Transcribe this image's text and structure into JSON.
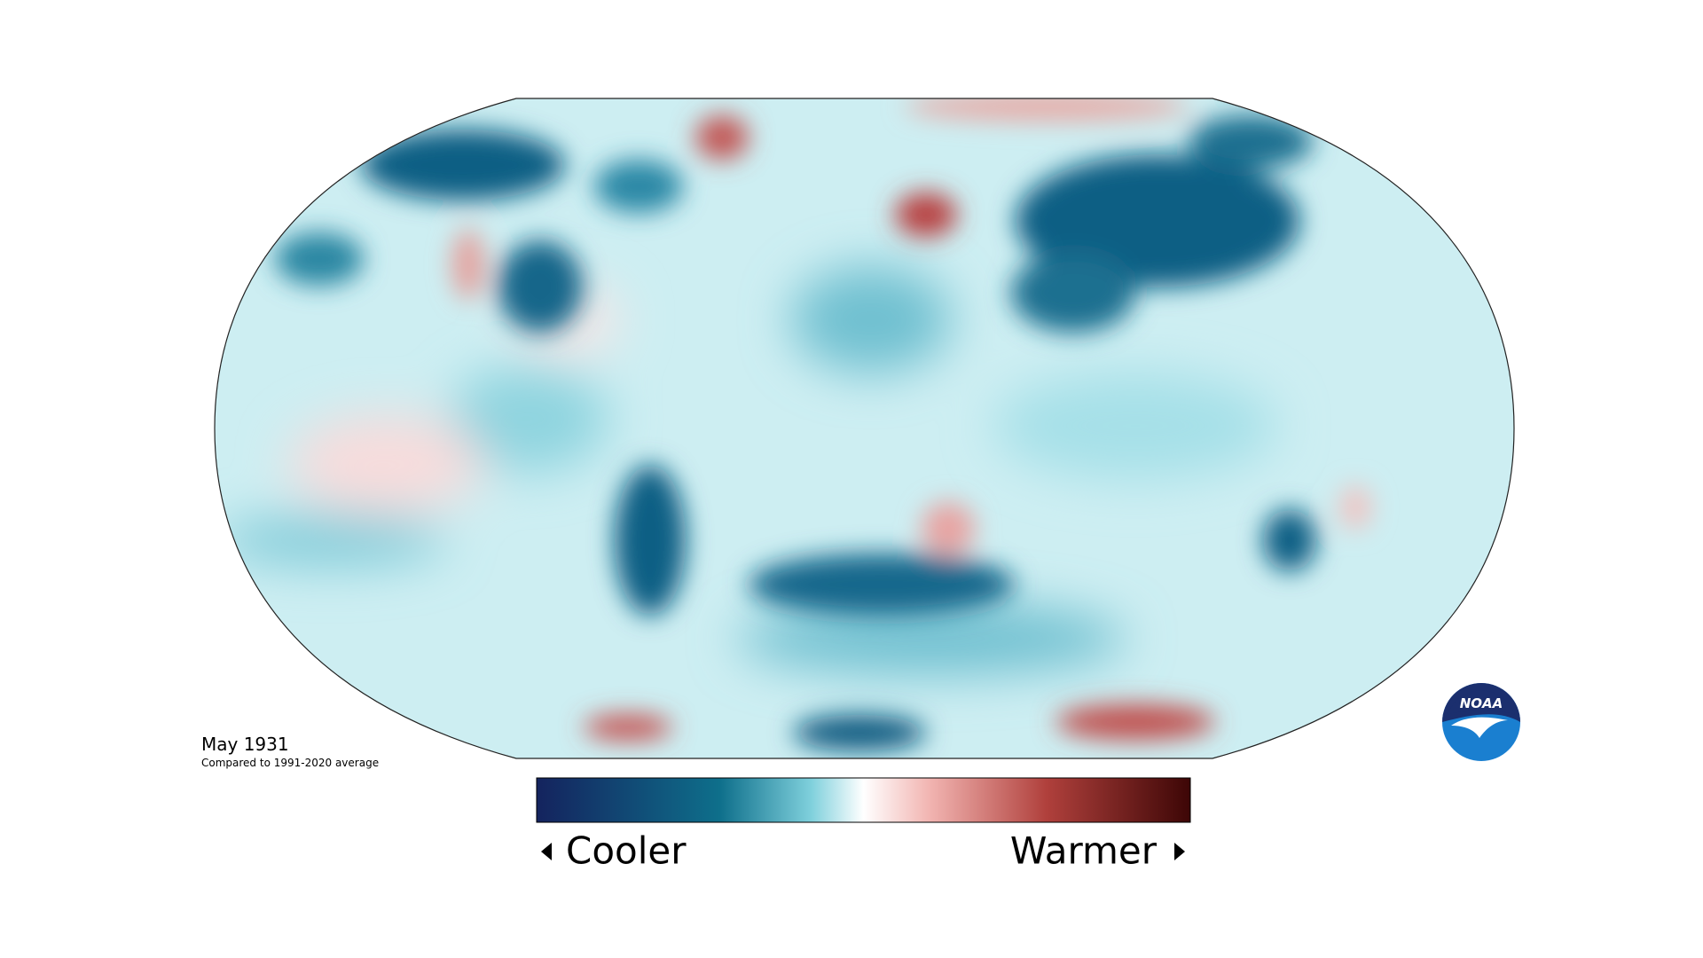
{
  "map": {
    "date": "May 1931",
    "baseline": "Compared to 1991-2020 average"
  },
  "legend": {
    "low": "Cooler",
    "high": "Warmer"
  },
  "logo": {
    "text": "NOAA"
  }
}
